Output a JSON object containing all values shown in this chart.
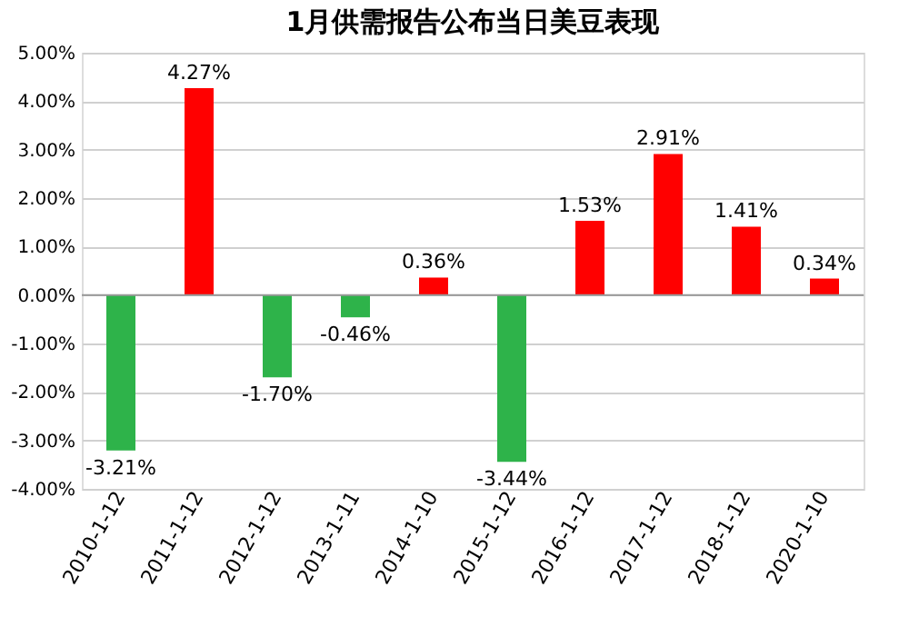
{
  "chart_data": {
    "type": "bar",
    "title": "1月供需报告公布当日美豆表现",
    "categories": [
      "2010-1-12",
      "2011-1-12",
      "2012-1-12",
      "2013-1-11",
      "2014-1-10",
      "2015-1-12",
      "2016-1-12",
      "2017-1-12",
      "2018-1-12",
      "2020-1-10"
    ],
    "values": [
      -3.21,
      4.27,
      -1.7,
      -0.46,
      0.36,
      -3.44,
      1.53,
      2.91,
      1.41,
      0.34
    ],
    "value_labels": [
      "-3.21%",
      "4.27%",
      "-1.70%",
      "-0.46%",
      "0.36%",
      "-3.44%",
      "1.53%",
      "2.91%",
      "1.41%",
      "0.34%"
    ],
    "colors": [
      "#2eb34a",
      "#ff0000",
      "#2eb34a",
      "#2eb34a",
      "#ff0000",
      "#2eb34a",
      "#ff0000",
      "#ff0000",
      "#ff0000",
      "#ff0000"
    ],
    "ylim": [
      -4,
      5
    ],
    "yticks": [
      {
        "value": -4,
        "label": "-4.00%"
      },
      {
        "value": -3,
        "label": "-3.00%"
      },
      {
        "value": -2,
        "label": "-2.00%"
      },
      {
        "value": -1,
        "label": "-1.00%"
      },
      {
        "value": 0,
        "label": "0.00%"
      },
      {
        "value": 1,
        "label": "1.00%"
      },
      {
        "value": 2,
        "label": "2.00%"
      },
      {
        "value": 3,
        "label": "3.00%"
      },
      {
        "value": 4,
        "label": "4.00%"
      },
      {
        "value": 5,
        "label": "5.00%"
      }
    ],
    "grid": "y"
  }
}
